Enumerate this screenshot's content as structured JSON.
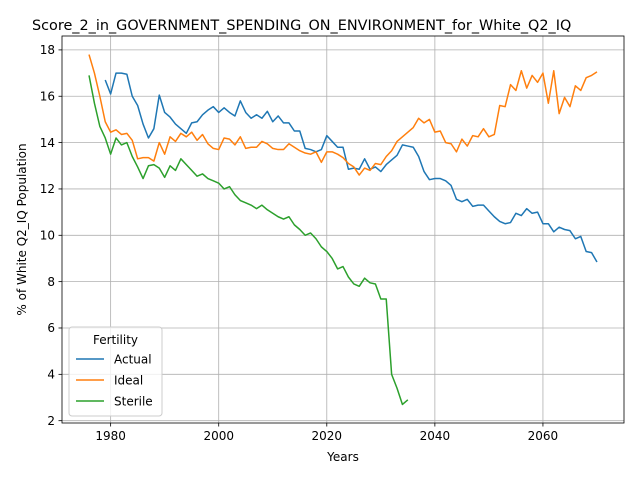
{
  "chart_data": {
    "type": "line",
    "title": "Score_2_in_GOVERNMENT_SPENDING_ON_ENVIRONMENT_for_White_Q2_IQ",
    "xlabel": "Years",
    "ylabel": "% of White Q2_IQ Population",
    "xlim": [
      1971,
      2075
    ],
    "ylim": [
      1.9,
      18.6
    ],
    "xticks": [
      1980,
      2000,
      2020,
      2040,
      2060
    ],
    "yticks": [
      2,
      4,
      6,
      8,
      10,
      12,
      14,
      16,
      18
    ],
    "grid": true,
    "legend": {
      "title": "Fertility",
      "placement": "lower-left"
    },
    "series": [
      {
        "name": "Actual",
        "color": "#1f77b4",
        "x": [
          1979,
          1980,
          1981,
          1982,
          1983,
          1984,
          1985,
          1986,
          1987,
          1988,
          1989,
          1990,
          1991,
          1992,
          1993,
          1994,
          1995,
          1996,
          1997,
          1998,
          1999,
          2000,
          2001,
          2002,
          2003,
          2004,
          2005,
          2006,
          2007,
          2008,
          2009,
          2010,
          2011,
          2012,
          2013,
          2014,
          2015,
          2016,
          2017,
          2018,
          2019,
          2020,
          2021,
          2022,
          2023,
          2024,
          2025,
          2026,
          2027,
          2028,
          2029,
          2030,
          2031,
          2032,
          2033,
          2034,
          2035,
          2036,
          2037,
          2038,
          2039,
          2040,
          2041,
          2042,
          2043,
          2044,
          2045,
          2046,
          2047,
          2048,
          2049,
          2050,
          2051,
          2052,
          2053,
          2054,
          2055,
          2056,
          2057,
          2058,
          2059,
          2060,
          2061,
          2062,
          2063,
          2064,
          2065,
          2066,
          2067,
          2068,
          2069,
          2070
        ],
        "values": [
          16.7,
          16.1,
          17.0,
          17.0,
          16.95,
          16.0,
          15.6,
          14.8,
          14.2,
          14.6,
          16.05,
          15.3,
          15.1,
          14.8,
          14.6,
          14.4,
          14.85,
          14.9,
          15.2,
          15.4,
          15.55,
          15.3,
          15.5,
          15.3,
          15.15,
          15.8,
          15.3,
          15.05,
          15.2,
          15.05,
          15.35,
          14.9,
          15.15,
          14.85,
          14.85,
          14.5,
          14.5,
          13.75,
          13.7,
          13.6,
          13.7,
          14.3,
          14.05,
          13.8,
          13.8,
          12.85,
          12.9,
          12.85,
          13.3,
          12.85,
          12.95,
          12.75,
          13.05,
          13.25,
          13.45,
          13.9,
          13.85,
          13.8,
          13.4,
          12.75,
          12.4,
          12.45,
          12.45,
          12.35,
          12.15,
          11.55,
          11.45,
          11.55,
          11.25,
          11.3,
          11.3,
          11.05,
          10.8,
          10.6,
          10.5,
          10.55,
          10.95,
          10.85,
          11.15,
          10.95,
          11.0,
          10.5,
          10.5,
          10.15,
          10.35,
          10.25,
          10.2,
          9.85,
          9.95,
          9.3,
          9.25,
          8.85
        ]
      },
      {
        "name": "Ideal",
        "color": "#ff7f0e",
        "x": [
          1976,
          1977,
          1978,
          1979,
          1980,
          1981,
          1982,
          1983,
          1984,
          1985,
          1986,
          1987,
          1988,
          1989,
          1990,
          1991,
          1992,
          1993,
          1994,
          1995,
          1996,
          1997,
          1998,
          1999,
          2000,
          2001,
          2002,
          2003,
          2004,
          2005,
          2006,
          2007,
          2008,
          2009,
          2010,
          2011,
          2012,
          2013,
          2014,
          2015,
          2016,
          2017,
          2018,
          2019,
          2020,
          2021,
          2022,
          2023,
          2024,
          2025,
          2026,
          2027,
          2028,
          2029,
          2030,
          2031,
          2032,
          2033,
          2034,
          2035,
          2036,
          2037,
          2038,
          2039,
          2040,
          2041,
          2042,
          2043,
          2044,
          2045,
          2046,
          2047,
          2048,
          2049,
          2050,
          2051,
          2052,
          2053,
          2054,
          2055,
          2056,
          2057,
          2058,
          2059,
          2060,
          2061,
          2062,
          2063,
          2064,
          2065,
          2066,
          2067,
          2068,
          2069,
          2070
        ],
        "values": [
          17.8,
          17.0,
          16.0,
          14.9,
          14.45,
          14.55,
          14.35,
          14.4,
          14.1,
          13.3,
          13.35,
          13.35,
          13.2,
          14.0,
          13.5,
          14.25,
          14.05,
          14.4,
          14.25,
          14.45,
          14.1,
          14.35,
          13.95,
          13.75,
          13.7,
          14.2,
          14.15,
          13.9,
          14.25,
          13.75,
          13.8,
          13.8,
          14.05,
          13.95,
          13.75,
          13.7,
          13.7,
          13.95,
          13.8,
          13.65,
          13.55,
          13.5,
          13.6,
          13.15,
          13.6,
          13.6,
          13.5,
          13.35,
          13.1,
          12.95,
          12.6,
          12.9,
          12.8,
          13.1,
          13.05,
          13.4,
          13.65,
          14.05,
          14.25,
          14.45,
          14.65,
          15.05,
          14.85,
          15.0,
          14.45,
          14.5,
          14.0,
          13.95,
          13.6,
          14.15,
          13.85,
          14.3,
          14.25,
          14.6,
          14.25,
          14.35,
          15.6,
          15.55,
          16.5,
          16.25,
          17.1,
          16.35,
          16.9,
          16.6,
          17.0,
          15.7,
          17.1,
          15.25,
          15.95,
          15.55,
          16.45,
          16.25,
          16.8,
          16.9,
          17.05
        ]
      },
      {
        "name": "Sterile",
        "color": "#2ca02c",
        "x": [
          1976,
          1977,
          1978,
          1979,
          1980,
          1981,
          1982,
          1983,
          1984,
          1985,
          1986,
          1987,
          1988,
          1989,
          1990,
          1991,
          1992,
          1993,
          1994,
          1995,
          1996,
          1997,
          1998,
          1999,
          2000,
          2001,
          2002,
          2003,
          2004,
          2005,
          2006,
          2007,
          2008,
          2009,
          2010,
          2011,
          2012,
          2013,
          2014,
          2015,
          2016,
          2017,
          2018,
          2019,
          2020,
          2021,
          2022,
          2023,
          2024,
          2025,
          2026,
          2027,
          2028,
          2029,
          2030,
          2031,
          2032,
          2033,
          2034,
          2035
        ],
        "values": [
          16.9,
          15.7,
          14.7,
          14.2,
          13.5,
          14.2,
          13.9,
          14.0,
          13.4,
          12.95,
          12.45,
          13.0,
          13.05,
          12.9,
          12.5,
          13.0,
          12.8,
          13.3,
          13.05,
          12.8,
          12.55,
          12.65,
          12.45,
          12.35,
          12.25,
          12.0,
          12.1,
          11.75,
          11.5,
          11.4,
          11.3,
          11.15,
          11.3,
          11.1,
          10.95,
          10.8,
          10.7,
          10.8,
          10.45,
          10.25,
          10.0,
          10.1,
          9.85,
          9.5,
          9.3,
          9.0,
          8.55,
          8.65,
          8.2,
          7.9,
          7.8,
          8.15,
          7.95,
          7.9,
          7.25,
          7.25,
          4.0,
          3.4,
          2.7,
          2.9
        ]
      }
    ]
  }
}
